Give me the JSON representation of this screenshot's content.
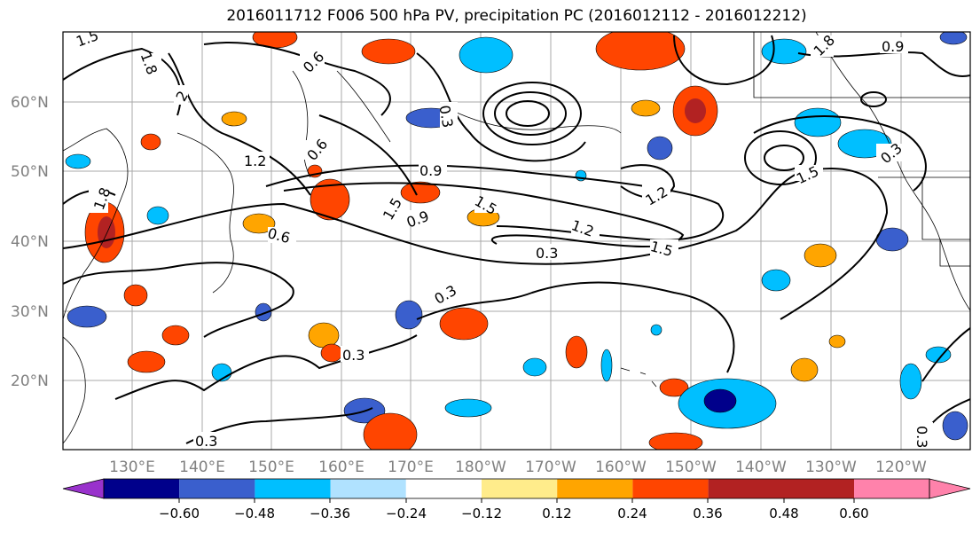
{
  "title": "2016011712 F006 500 hPa PV, precipitation PC (2016012112 - 2016012212)",
  "lon_ticks": [
    "130°E",
    "140°E",
    "150°E",
    "160°E",
    "170°E",
    "180°W",
    "170°W",
    "160°W",
    "150°W",
    "140°W",
    "130°W",
    "120°W"
  ],
  "lat_ticks": [
    "60°N",
    "50°N",
    "40°N",
    "30°N",
    "20°N"
  ],
  "contour_labels": [
    "1.5",
    "1.8",
    "1.8",
    "2",
    "0.6",
    "1.2",
    "0.6",
    "0.9",
    "1.5",
    "0.9",
    "1.5",
    "0.3",
    "1.2",
    "1.5",
    "0.3",
    "0.3",
    "0.3",
    "0.3",
    "0.9",
    "1.2",
    "1.5",
    "0.3",
    "0.3",
    "0.6",
    "1.8"
  ],
  "colorbar": {
    "colors": [
      "#9932cc",
      "#00008b",
      "#3a5fcd",
      "#00bfff",
      "#b0e2ff",
      "#ffffff",
      "#ffec8b",
      "#ffa500",
      "#ff4500",
      "#b22222",
      "#ff82ab"
    ],
    "tick_labels": [
      "−0.60",
      "−0.48",
      "−0.36",
      "−0.24",
      "−0.12",
      "0.12",
      "0.24",
      "0.36",
      "0.48",
      "0.60"
    ]
  }
}
